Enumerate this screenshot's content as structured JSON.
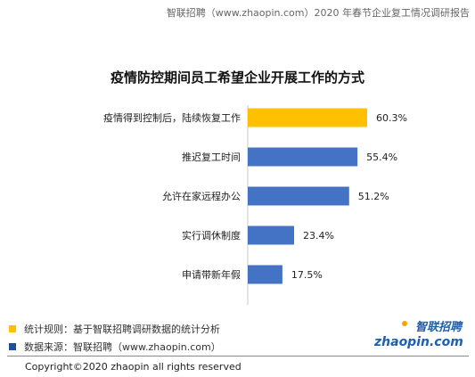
{
  "header": {
    "text": "智联招聘（www.zhaopin.com）2020 年春节企业复工情况调研报告"
  },
  "chart_data": {
    "type": "bar",
    "orientation": "horizontal",
    "title": "疫情防控期间员工希望企业开展工作的方式",
    "categories": [
      "疫情得到控制后，陆续恢复工作",
      "推迟复工时间",
      "允许在家远程办公",
      "实行调休制度",
      "申请带新年假"
    ],
    "values": [
      60.3,
      55.4,
      51.2,
      23.4,
      17.5
    ],
    "value_labels": [
      "60.3%",
      "55.4%",
      "51.2%",
      "23.4%",
      "17.5%"
    ],
    "bar_colors": [
      "#FFC000",
      "#4472C4",
      "#4472C4",
      "#4472C4",
      "#4472C4"
    ],
    "xlim": [
      0,
      100
    ],
    "grid": false
  },
  "legend": {
    "rule": {
      "color": "#FFC000",
      "text": "统计规则：基于智联招聘调研数据的统计分析"
    },
    "source": {
      "color": "#1F4E9A",
      "text": "数据来源：智联招聘（www.zhaopin.com）"
    }
  },
  "logo": {
    "top_text": "智联招聘",
    "bottom_text": "zhaopin.com",
    "color": "#1F5FB0",
    "accent": "#F5A300"
  },
  "copyright": "Copyright©2020 zhaopin all rights reserved"
}
